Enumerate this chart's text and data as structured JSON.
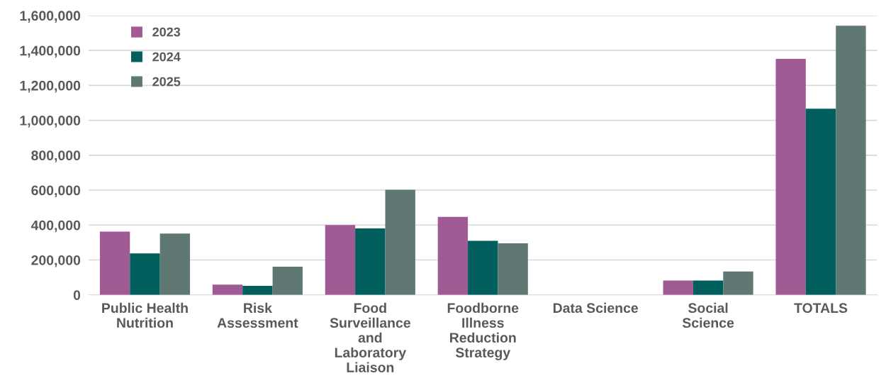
{
  "chart_data": {
    "type": "bar",
    "categories": [
      "Public Health Nutrition",
      "Risk Assessment",
      "Food Surveillance and Laboratory Liaison",
      "Foodborne Illness Reduction Strategy",
      "Data Science",
      "Social Science",
      "TOTALS"
    ],
    "series": [
      {
        "name": "2023",
        "color": "#a05a94",
        "values": [
          362000,
          59000,
          400000,
          447000,
          0,
          82000,
          1352000
        ]
      },
      {
        "name": "2024",
        "color": "#005f5c",
        "values": [
          238000,
          52000,
          381000,
          310000,
          0,
          82000,
          1066000
        ]
      },
      {
        "name": "2025",
        "color": "#607874",
        "values": [
          351000,
          161000,
          602000,
          295000,
          0,
          134000,
          1542000
        ]
      }
    ],
    "ylim": [
      0,
      1600000
    ],
    "yticks": [
      {
        "value": 0,
        "label": "0"
      },
      {
        "value": 200000,
        "label": "200,000"
      },
      {
        "value": 400000,
        "label": "400,000"
      },
      {
        "value": 600000,
        "label": "600,000"
      },
      {
        "value": 800000,
        "label": "800,000"
      },
      {
        "value": 1000000,
        "label": "1,000,000"
      },
      {
        "value": 1200000,
        "label": "1,200,000"
      },
      {
        "value": 1400000,
        "label": "1,400,000"
      },
      {
        "value": 1600000,
        "label": "1,600,000"
      }
    ],
    "grid": "y",
    "legend": "top left"
  }
}
